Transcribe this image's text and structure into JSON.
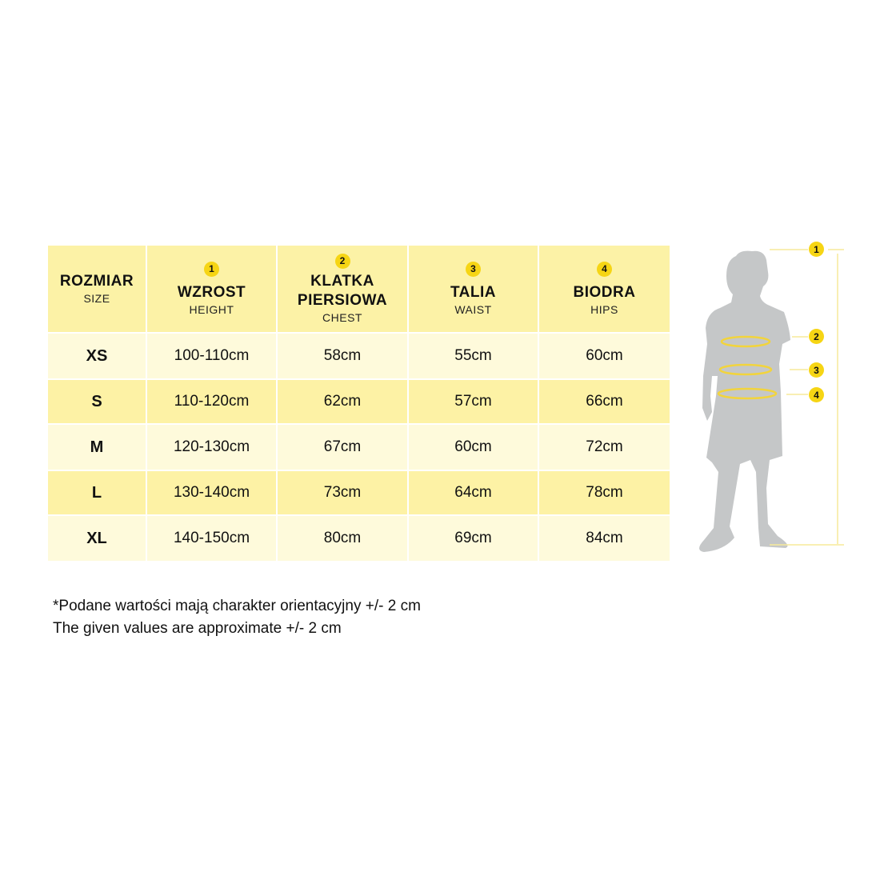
{
  "colors": {
    "header": "#fcf2a6",
    "row_light": "#fefadb",
    "row_dark": "#fdf2a5",
    "badge": "#f6d514",
    "silhouette": "#c5c7c8"
  },
  "headers": [
    {
      "title": "ROZMIAR",
      "subtitle": "SIZE",
      "badge": ""
    },
    {
      "title": "WZROST",
      "subtitle": "HEIGHT",
      "badge": "1"
    },
    {
      "title": "KLATKA PIERSIOWA",
      "subtitle": "CHEST",
      "badge": "2"
    },
    {
      "title": "TALIA",
      "subtitle": "WAIST",
      "badge": "3"
    },
    {
      "title": "BIODRA",
      "subtitle": "HIPS",
      "badge": "4"
    }
  ],
  "rows": [
    [
      "XS",
      "100-110cm",
      "58cm",
      "55cm",
      "60cm"
    ],
    [
      "S",
      "110-120cm",
      "62cm",
      "57cm",
      "66cm"
    ],
    [
      "M",
      "120-130cm",
      "67cm",
      "60cm",
      "72cm"
    ],
    [
      "L",
      "130-140cm",
      "73cm",
      "64cm",
      "78cm"
    ],
    [
      "XL",
      "140-150cm",
      "80cm",
      "69cm",
      "84cm"
    ]
  ],
  "notes": [
    "*Podane wartości mają charakter orientacyjny +/- 2 cm",
    "The given values are approximate +/- 2 cm"
  ],
  "figure_markers": [
    "1",
    "2",
    "3",
    "4"
  ]
}
